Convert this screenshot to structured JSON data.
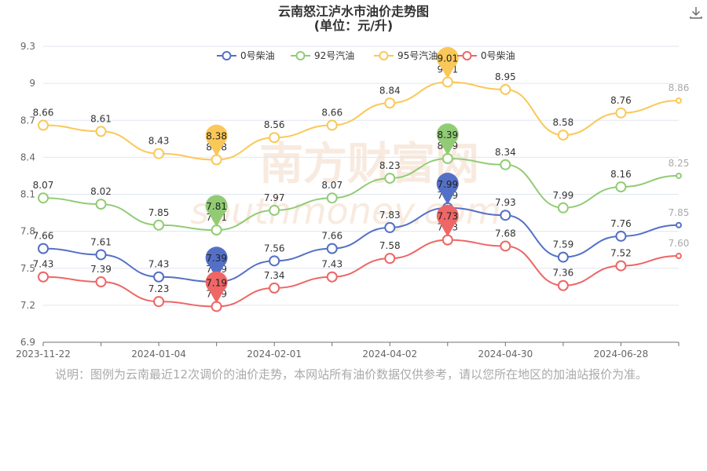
{
  "title_line1": "云南怒江泸水市油价走势图",
  "title_line2": "(单位：元/升)",
  "note": "说明：图例为云南最近12次调价的油价走势，本网站所有油价数据仅供参考，请以您所在地区的加油站报价为准。",
  "watermark": "南方财富网 southmoney.com",
  "download_icon": "download-icon",
  "chart_data": {
    "type": "line",
    "x_tick_labels": [
      "2023-11-22",
      "2024-01-04",
      "2024-02-01",
      "2024-04-02",
      "2024-04-30",
      "2024-06-28"
    ],
    "y_ticks": [
      6.9,
      7.2,
      7.5,
      7.8,
      8.1,
      8.4,
      8.7,
      9,
      9.3
    ],
    "ylim": [
      6.9,
      9.3
    ],
    "smooth": true,
    "legend_position": "top-center",
    "series": [
      {
        "name": "0号柴油",
        "color": "#5470c6",
        "values": [
          7.66,
          7.61,
          7.43,
          7.39,
          7.56,
          7.66,
          7.83,
          7.99,
          7.93,
          7.59,
          7.76,
          7.85
        ],
        "labels": [
          "7.66",
          "7.61",
          "7.43",
          "7.39",
          "7.56",
          "7.66",
          "7.83",
          "7.99",
          "7.93",
          "7.59",
          "7.76",
          "7.85"
        ],
        "min_index": 3,
        "max_index": 7
      },
      {
        "name": "92号汽油",
        "color": "#91cc75",
        "values": [
          8.07,
          8.02,
          7.85,
          7.81,
          7.97,
          8.07,
          8.23,
          8.39,
          8.34,
          7.99,
          8.16,
          8.25
        ],
        "labels": [
          "8.07",
          "8.02",
          "7.85",
          "7.81",
          "7.97",
          "8.07",
          "8.23",
          "8.39",
          "8.34",
          "7.99",
          "8.16",
          "8.25"
        ],
        "min_index": 3,
        "max_index": 7
      },
      {
        "name": "95号汽油",
        "color": "#fac858",
        "values": [
          8.66,
          8.61,
          8.43,
          8.38,
          8.56,
          8.66,
          8.84,
          9.01,
          8.95,
          8.58,
          8.76,
          8.86
        ],
        "labels": [
          "8.66",
          "8.61",
          "8.43",
          "8.38",
          "8.56",
          "8.66",
          "8.84",
          "9.01",
          "8.95",
          "8.58",
          "8.76",
          "8.86"
        ],
        "min_index": 3,
        "max_index": 7
      },
      {
        "name": "0号柴油",
        "color": "#ee6666",
        "values": [
          7.43,
          7.39,
          7.23,
          7.19,
          7.34,
          7.43,
          7.58,
          7.73,
          7.68,
          7.36,
          7.52,
          7.6
        ],
        "labels": [
          "7.43",
          "7.39",
          "7.23",
          "7.19",
          "7.34",
          "7.43",
          "7.58",
          "7.73",
          "7.68",
          "7.36",
          "7.52",
          "7.60"
        ],
        "min_index": 3,
        "max_index": 7
      }
    ]
  }
}
